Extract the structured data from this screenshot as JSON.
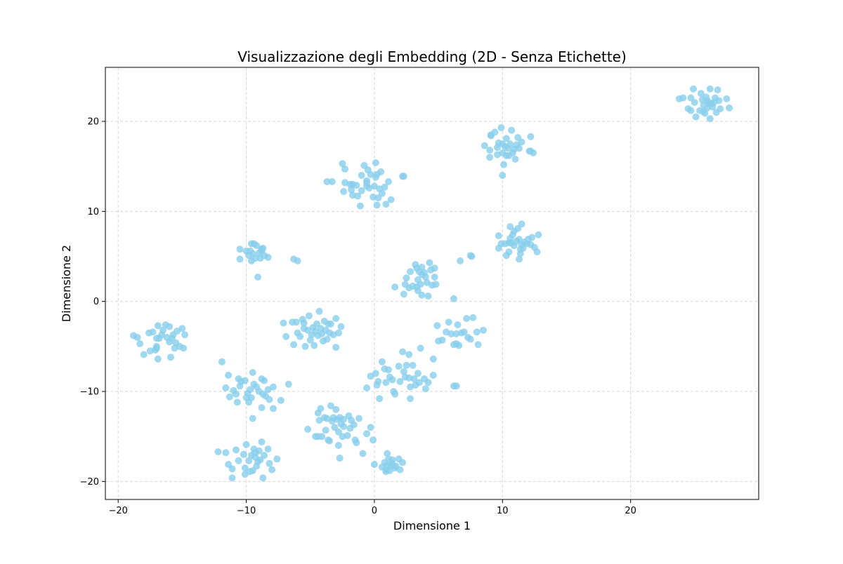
{
  "chart_data": {
    "type": "scatter",
    "title": "Visualizzazione degli Embedding (2D - Senza Etichette)",
    "xlabel": "Dimensione 1",
    "ylabel": "Dimensione 2",
    "xlim": [
      -21,
      30
    ],
    "ylim": [
      -22,
      26
    ],
    "xticks": [
      -20,
      -10,
      0,
      10,
      20
    ],
    "yticks": [
      -20,
      -10,
      0,
      10,
      20
    ],
    "grid": true,
    "point_color": "#87CEEB",
    "points": [
      [
        -18.8,
        -3.8
      ],
      [
        -18.5,
        -4.0
      ],
      [
        -18.3,
        -4.7
      ],
      [
        -18.0,
        -5.9
      ],
      [
        -17.6,
        -3.5
      ],
      [
        -17.3,
        -3.4
      ],
      [
        -17.5,
        -5.5
      ],
      [
        -17.1,
        -5.4
      ],
      [
        -17.0,
        -4.1
      ],
      [
        -16.9,
        -2.7
      ],
      [
        -17.0,
        -5.0
      ],
      [
        -16.8,
        -4.1
      ],
      [
        -16.6,
        -3.7
      ],
      [
        -16.5,
        -3.2
      ],
      [
        -16.3,
        -2.6
      ],
      [
        -16.0,
        -4.5
      ],
      [
        -16.0,
        -2.8
      ],
      [
        -15.8,
        -4.1
      ],
      [
        -15.6,
        -5.2
      ],
      [
        -15.7,
        -3.7
      ],
      [
        -15.5,
        -4.6
      ],
      [
        -15.4,
        -3.3
      ],
      [
        -15.2,
        -5.0
      ],
      [
        -15.0,
        -3.0
      ],
      [
        -14.8,
        -3.7
      ],
      [
        -14.9,
        -5.2
      ],
      [
        -16.9,
        -6.4
      ],
      [
        -15.9,
        -6.2
      ],
      [
        -17.0,
        -5.2
      ],
      [
        -16.2,
        -4.0
      ],
      [
        -10.5,
        5.8
      ],
      [
        -10.0,
        5.6
      ],
      [
        -9.8,
        5.1
      ],
      [
        -9.6,
        6.4
      ],
      [
        -9.4,
        6.4
      ],
      [
        -9.2,
        6.2
      ],
      [
        -9.0,
        5.4
      ],
      [
        -8.9,
        4.8
      ],
      [
        -8.8,
        5.6
      ],
      [
        -8.7,
        5.9
      ],
      [
        -8.6,
        5.1
      ],
      [
        -8.3,
        4.9
      ],
      [
        -9.7,
        5.6
      ],
      [
        -10.5,
        4.7
      ],
      [
        -9.6,
        4.5
      ],
      [
        -9.3,
        4.8
      ],
      [
        -9.1,
        2.7
      ],
      [
        -9.5,
        5.3
      ],
      [
        -8.8,
        5.8
      ],
      [
        -6.3,
        4.7
      ],
      [
        -6.0,
        4.5
      ],
      [
        -7.1,
        -2.4
      ],
      [
        -6.9,
        -3.9
      ],
      [
        -6.4,
        -2.3
      ],
      [
        -6.3,
        -4.8
      ],
      [
        -6.1,
        -2.3
      ],
      [
        -6.0,
        -3.5
      ],
      [
        -5.8,
        -3.9
      ],
      [
        -5.6,
        -2.0
      ],
      [
        -5.5,
        -2.4
      ],
      [
        -5.5,
        -3.0
      ],
      [
        -5.4,
        -5.0
      ],
      [
        -5.2,
        -3.2
      ],
      [
        -5.1,
        -1.6
      ],
      [
        -5.0,
        -4.3
      ],
      [
        -4.9,
        -3.7
      ],
      [
        -4.8,
        -2.9
      ],
      [
        -4.7,
        -4.9
      ],
      [
        -4.6,
        -3.3
      ],
      [
        -4.5,
        -2.5
      ],
      [
        -4.4,
        -3.8
      ],
      [
        -4.3,
        -1.1
      ],
      [
        -4.2,
        -3.0
      ],
      [
        -4.1,
        -3.6
      ],
      [
        -4.0,
        -4.4
      ],
      [
        -3.9,
        -2.2
      ],
      [
        -3.8,
        -3.2
      ],
      [
        -3.7,
        -4.2
      ],
      [
        -3.6,
        -2.5
      ],
      [
        -3.5,
        -3.5
      ],
      [
        -3.4,
        -2.5
      ],
      [
        -3.2,
        -3.7
      ],
      [
        -3.0,
        -1.9
      ],
      [
        -3.0,
        -5.1
      ],
      [
        -2.8,
        -3.5
      ],
      [
        -2.6,
        -2.8
      ],
      [
        -11.9,
        -6.7
      ],
      [
        -11.6,
        -9.6
      ],
      [
        -11.4,
        -8.2
      ],
      [
        -11.3,
        -10.6
      ],
      [
        -11.0,
        -9.9
      ],
      [
        -10.8,
        -10.3
      ],
      [
        -10.6,
        -8.6
      ],
      [
        -10.7,
        -11.2
      ],
      [
        -10.5,
        -9.4
      ],
      [
        -10.4,
        -8.9
      ],
      [
        -10.1,
        -8.8
      ],
      [
        -9.9,
        -10.2
      ],
      [
        -9.8,
        -11.2
      ],
      [
        -9.7,
        -9.8
      ],
      [
        -9.6,
        -10.7
      ],
      [
        -9.5,
        -7.9
      ],
      [
        -9.4,
        -9.2
      ],
      [
        -9.2,
        -9.5
      ],
      [
        -9.0,
        -10.0
      ],
      [
        -8.8,
        -8.6
      ],
      [
        -8.8,
        -11.8
      ],
      [
        -8.7,
        -10.3
      ],
      [
        -8.6,
        -8.8
      ],
      [
        -8.5,
        -10.5
      ],
      [
        -8.3,
        -9.8
      ],
      [
        -8.2,
        -10.9
      ],
      [
        -7.9,
        -9.5
      ],
      [
        -7.9,
        -11.9
      ],
      [
        -7.3,
        -11.0
      ],
      [
        -6.7,
        -9.2
      ],
      [
        -9.5,
        -13.0
      ],
      [
        -10.0,
        -10.7
      ],
      [
        -12.2,
        -16.7
      ],
      [
        -11.6,
        -16.8
      ],
      [
        -11.4,
        -18.1
      ],
      [
        -11.1,
        -19.6
      ],
      [
        -11.1,
        -18.6
      ],
      [
        -10.8,
        -16.5
      ],
      [
        -10.6,
        -17.7
      ],
      [
        -10.2,
        -17.0
      ],
      [
        -10.1,
        -18.5
      ],
      [
        -10.0,
        -15.9
      ],
      [
        -10.1,
        -19.2
      ],
      [
        -9.8,
        -17.7
      ],
      [
        -9.6,
        -17.1
      ],
      [
        -9.5,
        -18.8
      ],
      [
        -9.4,
        -16.4
      ],
      [
        -9.3,
        -17.3
      ],
      [
        -9.2,
        -18.3
      ],
      [
        -9.1,
        -17.8
      ],
      [
        -9.0,
        -16.6
      ],
      [
        -8.9,
        -17.6
      ],
      [
        -8.8,
        -15.6
      ],
      [
        -8.7,
        -19.6
      ],
      [
        -8.6,
        -17.1
      ],
      [
        -8.3,
        -16.4
      ],
      [
        -8.2,
        -18.0
      ],
      [
        -8.0,
        -18.7
      ],
      [
        -7.6,
        -17.5
      ],
      [
        -9.7,
        -18.9
      ],
      [
        -9.3,
        -16.8
      ],
      [
        -5.2,
        -14.2
      ],
      [
        -4.6,
        -15.0
      ],
      [
        -4.4,
        -12.4
      ],
      [
        -4.3,
        -13.2
      ],
      [
        -4.2,
        -11.9
      ],
      [
        -4.1,
        -15.0
      ],
      [
        -3.9,
        -12.9
      ],
      [
        -3.8,
        -14.3
      ],
      [
        -3.7,
        -13.0
      ],
      [
        -3.6,
        -15.4
      ],
      [
        -3.4,
        -11.6
      ],
      [
        -3.3,
        -13.3
      ],
      [
        -3.2,
        -12.9
      ],
      [
        -3.1,
        -14.0
      ],
      [
        -3.0,
        -12.0
      ],
      [
        -2.9,
        -13.1
      ],
      [
        -2.8,
        -14.5
      ],
      [
        -2.7,
        -12.9
      ],
      [
        -2.6,
        -13.6
      ],
      [
        -2.5,
        -15.0
      ],
      [
        -2.4,
        -13.1
      ],
      [
        -2.1,
        -14.9
      ],
      [
        -2.0,
        -12.7
      ],
      [
        -1.9,
        -14.1
      ],
      [
        -1.8,
        -13.2
      ],
      [
        -1.6,
        -13.7
      ],
      [
        -1.5,
        -15.4
      ],
      [
        -1.4,
        -15.7
      ],
      [
        -1.2,
        -13.0
      ],
      [
        -0.6,
        -14.7
      ],
      [
        -0.3,
        -14.0
      ],
      [
        -0.1,
        -15.4
      ],
      [
        -2.7,
        -17.4
      ],
      [
        -0.9,
        -16.9
      ],
      [
        -2.8,
        -16.0
      ],
      [
        -3.5,
        -15.5
      ],
      [
        -2.4,
        -13.9
      ],
      [
        -4.4,
        -15.0
      ],
      [
        -0.6,
        -9.6
      ],
      [
        -0.3,
        -8.3
      ],
      [
        0.1,
        -8.0
      ],
      [
        0.2,
        -9.3
      ],
      [
        0.3,
        -8.9
      ],
      [
        0.6,
        -6.7
      ],
      [
        0.8,
        -7.5
      ],
      [
        0.9,
        -9.0
      ],
      [
        1.1,
        -7.6
      ],
      [
        1.2,
        -8.4
      ],
      [
        1.4,
        -8.7
      ],
      [
        1.5,
        -10.0
      ],
      [
        1.6,
        -10.3
      ],
      [
        1.9,
        -7.2
      ],
      [
        2.0,
        -8.9
      ],
      [
        2.2,
        -5.6
      ],
      [
        2.3,
        -7.8
      ],
      [
        2.4,
        -8.4
      ],
      [
        2.5,
        -7.1
      ],
      [
        2.7,
        -8.5
      ],
      [
        2.8,
        -10.8
      ],
      [
        2.8,
        -9.5
      ],
      [
        3.0,
        -7.1
      ],
      [
        3.1,
        -8.6
      ],
      [
        3.2,
        -9.3
      ],
      [
        3.4,
        -8.0
      ],
      [
        3.5,
        -9.0
      ],
      [
        3.6,
        -5.2
      ],
      [
        3.9,
        -8.6
      ],
      [
        4.0,
        -9.7
      ],
      [
        4.2,
        -9.0
      ],
      [
        4.6,
        -8.2
      ],
      [
        4.6,
        -6.4
      ],
      [
        6.2,
        -9.4
      ],
      [
        6.4,
        -9.4
      ],
      [
        0.4,
        -10.8
      ],
      [
        2.7,
        -5.9
      ],
      [
        0.0,
        -18.1
      ],
      [
        0.6,
        -18.4
      ],
      [
        0.8,
        -17.9
      ],
      [
        0.9,
        -18.7
      ],
      [
        1.0,
        -18.2
      ],
      [
        1.0,
        -16.9
      ],
      [
        1.1,
        -17.5
      ],
      [
        1.2,
        -18.8
      ],
      [
        1.3,
        -18.3
      ],
      [
        1.4,
        -17.6
      ],
      [
        1.6,
        -18.5
      ],
      [
        1.7,
        -18.3
      ],
      [
        1.9,
        -17.5
      ],
      [
        2.0,
        -18.7
      ],
      [
        2.2,
        -17.9
      ],
      [
        0.9,
        -18.9
      ],
      [
        1.4,
        -18.0
      ],
      [
        1.6,
        1.6
      ],
      [
        2.3,
        0.8
      ],
      [
        2.4,
        1.9
      ],
      [
        2.5,
        2.6
      ],
      [
        2.7,
        1.5
      ],
      [
        2.8,
        3.3
      ],
      [
        3.0,
        1.7
      ],
      [
        3.2,
        4.1
      ],
      [
        3.3,
        3.7
      ],
      [
        3.4,
        2.4
      ],
      [
        3.4,
        1.2
      ],
      [
        3.5,
        3.3
      ],
      [
        3.6,
        1.9
      ],
      [
        3.7,
        0.7
      ],
      [
        3.7,
        3.0
      ],
      [
        3.9,
        3.2
      ],
      [
        4.0,
        2.7
      ],
      [
        4.1,
        2.1
      ],
      [
        4.3,
        4.3
      ],
      [
        4.2,
        0.6
      ],
      [
        4.4,
        3.5
      ],
      [
        4.5,
        1.8
      ],
      [
        4.7,
        2.7
      ],
      [
        4.8,
        1.9
      ],
      [
        4.7,
        3.7
      ],
      [
        3.3,
        1.6
      ],
      [
        3.7,
        3.8
      ],
      [
        4.9,
        -2.7
      ],
      [
        5.0,
        -4.4
      ],
      [
        5.3,
        -4.3
      ],
      [
        5.6,
        -3.4
      ],
      [
        5.8,
        -2.3
      ],
      [
        6.0,
        -3.6
      ],
      [
        6.2,
        -4.8
      ],
      [
        6.4,
        -3.6
      ],
      [
        6.5,
        -2.6
      ],
      [
        6.6,
        -4.9
      ],
      [
        6.8,
        -3.5
      ],
      [
        7.0,
        -3.4
      ],
      [
        7.2,
        -1.9
      ],
      [
        7.3,
        -4.0
      ],
      [
        7.5,
        -4.2
      ],
      [
        7.7,
        -1.8
      ],
      [
        8.0,
        -3.4
      ],
      [
        8.1,
        -4.8
      ],
      [
        8.5,
        -3.2
      ],
      [
        6.7,
        4.5
      ],
      [
        7.5,
        5.1
      ],
      [
        7.6,
        5.0
      ],
      [
        6.2,
        0.3
      ],
      [
        6.4,
        -4.7
      ],
      [
        -3.7,
        13.3
      ],
      [
        -3.3,
        13.3
      ],
      [
        -2.5,
        15.3
      ],
      [
        -2.3,
        14.7
      ],
      [
        -2.3,
        13.2
      ],
      [
        -2.4,
        12.2
      ],
      [
        -1.8,
        12.4
      ],
      [
        -1.7,
        13.0
      ],
      [
        -1.7,
        11.8
      ],
      [
        -1.4,
        12.9
      ],
      [
        -1.3,
        11.7
      ],
      [
        -1.1,
        10.6
      ],
      [
        -1.0,
        12.3
      ],
      [
        -1.0,
        14.0
      ],
      [
        -0.8,
        15.1
      ],
      [
        -0.6,
        12.8
      ],
      [
        -0.6,
        13.4
      ],
      [
        -0.5,
        14.6
      ],
      [
        -0.4,
        12.6
      ],
      [
        -0.3,
        14.1
      ],
      [
        -0.1,
        11.6
      ],
      [
        0.0,
        12.8
      ],
      [
        0.1,
        15.4
      ],
      [
        0.1,
        13.8
      ],
      [
        0.2,
        14.1
      ],
      [
        0.2,
        10.7
      ],
      [
        0.3,
        11.5
      ],
      [
        0.4,
        12.5
      ],
      [
        0.5,
        14.4
      ],
      [
        0.6,
        12.0
      ],
      [
        0.8,
        12.7
      ],
      [
        0.9,
        10.8
      ],
      [
        1.1,
        13.3
      ],
      [
        1.3,
        11.3
      ],
      [
        2.2,
        13.9
      ],
      [
        2.3,
        13.9
      ],
      [
        -1.9,
        13.0
      ],
      [
        -0.6,
        13.2
      ],
      [
        8.6,
        17.3
      ],
      [
        9.1,
        18.4
      ],
      [
        9.1,
        18.5
      ],
      [
        9.0,
        16.8
      ],
      [
        9.0,
        16.0
      ],
      [
        9.4,
        18.8
      ],
      [
        9.6,
        17.1
      ],
      [
        9.6,
        16.3
      ],
      [
        9.7,
        17.6
      ],
      [
        9.9,
        19.3
      ],
      [
        10.0,
        17.5
      ],
      [
        10.0,
        16.5
      ],
      [
        10.1,
        15.2
      ],
      [
        10.0,
        14.0
      ],
      [
        10.2,
        17.2
      ],
      [
        10.3,
        16.2
      ],
      [
        10.3,
        18.1
      ],
      [
        10.4,
        17.0
      ],
      [
        10.5,
        16.2
      ],
      [
        10.6,
        17.5
      ],
      [
        10.7,
        19.0
      ],
      [
        10.8,
        16.5
      ],
      [
        10.9,
        16.9
      ],
      [
        11.0,
        15.8
      ],
      [
        11.1,
        17.4
      ],
      [
        11.2,
        18.2
      ],
      [
        11.3,
        17.0
      ],
      [
        11.5,
        17.7
      ],
      [
        12.1,
        16.7
      ],
      [
        12.2,
        18.3
      ],
      [
        12.2,
        16.7
      ],
      [
        12.4,
        16.5
      ],
      [
        9.7,
        5.9
      ],
      [
        9.7,
        7.3
      ],
      [
        9.9,
        6.4
      ],
      [
        10.2,
        6.4
      ],
      [
        10.3,
        5.1
      ],
      [
        10.5,
        6.5
      ],
      [
        10.5,
        5.5
      ],
      [
        10.6,
        8.3
      ],
      [
        10.7,
        6.5
      ],
      [
        10.8,
        7.4
      ],
      [
        10.9,
        6.2
      ],
      [
        10.9,
        7.8
      ],
      [
        11.1,
        6.7
      ],
      [
        11.2,
        8.1
      ],
      [
        11.3,
        6.9
      ],
      [
        11.3,
        4.7
      ],
      [
        11.4,
        5.3
      ],
      [
        11.5,
        8.6
      ],
      [
        11.5,
        6.3
      ],
      [
        11.6,
        5.9
      ],
      [
        11.7,
        6.6
      ],
      [
        11.9,
        6.4
      ],
      [
        12.0,
        6.9
      ],
      [
        12.2,
        6.3
      ],
      [
        12.3,
        7.1
      ],
      [
        12.5,
        6.0
      ],
      [
        12.7,
        5.5
      ],
      [
        12.8,
        7.4
      ],
      [
        10.6,
        7.0
      ],
      [
        11.4,
        5.8
      ],
      [
        23.8,
        22.5
      ],
      [
        24.1,
        22.6
      ],
      [
        24.5,
        21.4
      ],
      [
        24.7,
        21.2
      ],
      [
        24.7,
        22.6
      ],
      [
        24.9,
        23.6
      ],
      [
        25.0,
        22.1
      ],
      [
        25.1,
        20.5
      ],
      [
        25.4,
        21.2
      ],
      [
        25.5,
        23.1
      ],
      [
        25.6,
        22.4
      ],
      [
        25.7,
        21.8
      ],
      [
        25.8,
        20.9
      ],
      [
        25.9,
        22.7
      ],
      [
        26.0,
        21.5
      ],
      [
        26.1,
        22.0
      ],
      [
        26.2,
        23.6
      ],
      [
        26.2,
        20.3
      ],
      [
        26.3,
        22.0
      ],
      [
        26.4,
        21.6
      ],
      [
        26.6,
        22.6
      ],
      [
        26.7,
        21.0
      ],
      [
        26.8,
        23.5
      ],
      [
        26.9,
        22.3
      ],
      [
        27.0,
        21.4
      ],
      [
        27.5,
        22.5
      ],
      [
        27.7,
        21.5
      ],
      [
        26.5,
        22.1
      ],
      [
        25.7,
        21.1
      ],
      [
        26.0,
        22.3
      ]
    ]
  }
}
